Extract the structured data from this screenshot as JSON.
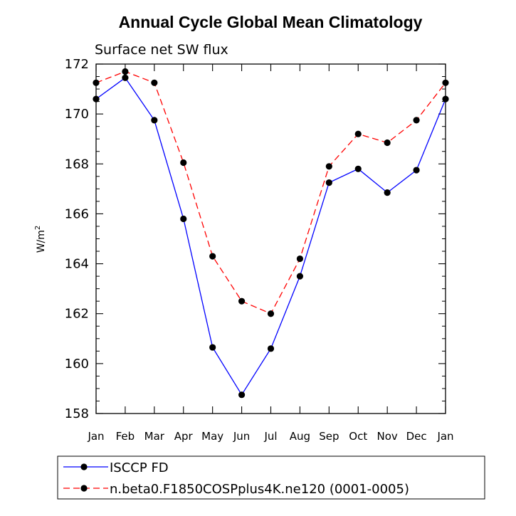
{
  "chart_data": {
    "type": "line",
    "title": "Annual Cycle Global Mean Climatology",
    "subtitle": "Surface net SW flux",
    "xlabel": "",
    "ylabel": "W/m",
    "ylabel_superscript": "2",
    "ylim": [
      158,
      172
    ],
    "yticks": [
      158,
      160,
      162,
      164,
      166,
      168,
      170,
      172
    ],
    "categories": [
      "Jan",
      "Feb",
      "Mar",
      "Apr",
      "May",
      "Jun",
      "Jul",
      "Aug",
      "Sep",
      "Oct",
      "Nov",
      "Dec",
      "Jan"
    ],
    "series": [
      {
        "name": "ISCCP FD",
        "color": "#0000ff",
        "dash": "solid",
        "values": [
          170.6,
          171.45,
          169.75,
          165.8,
          160.65,
          158.75,
          160.6,
          163.5,
          167.25,
          167.8,
          166.85,
          167.75,
          170.6
        ]
      },
      {
        "name": "n.beta0.F1850COSPplus4K.ne120 (0001-0005)",
        "color": "#ff0000",
        "dash": "dashed",
        "values": [
          171.25,
          171.7,
          171.25,
          168.05,
          164.3,
          162.5,
          162.0,
          164.2,
          167.9,
          169.2,
          168.85,
          169.75,
          171.25
        ]
      }
    ],
    "legend_position": "bottom",
    "grid": false
  }
}
